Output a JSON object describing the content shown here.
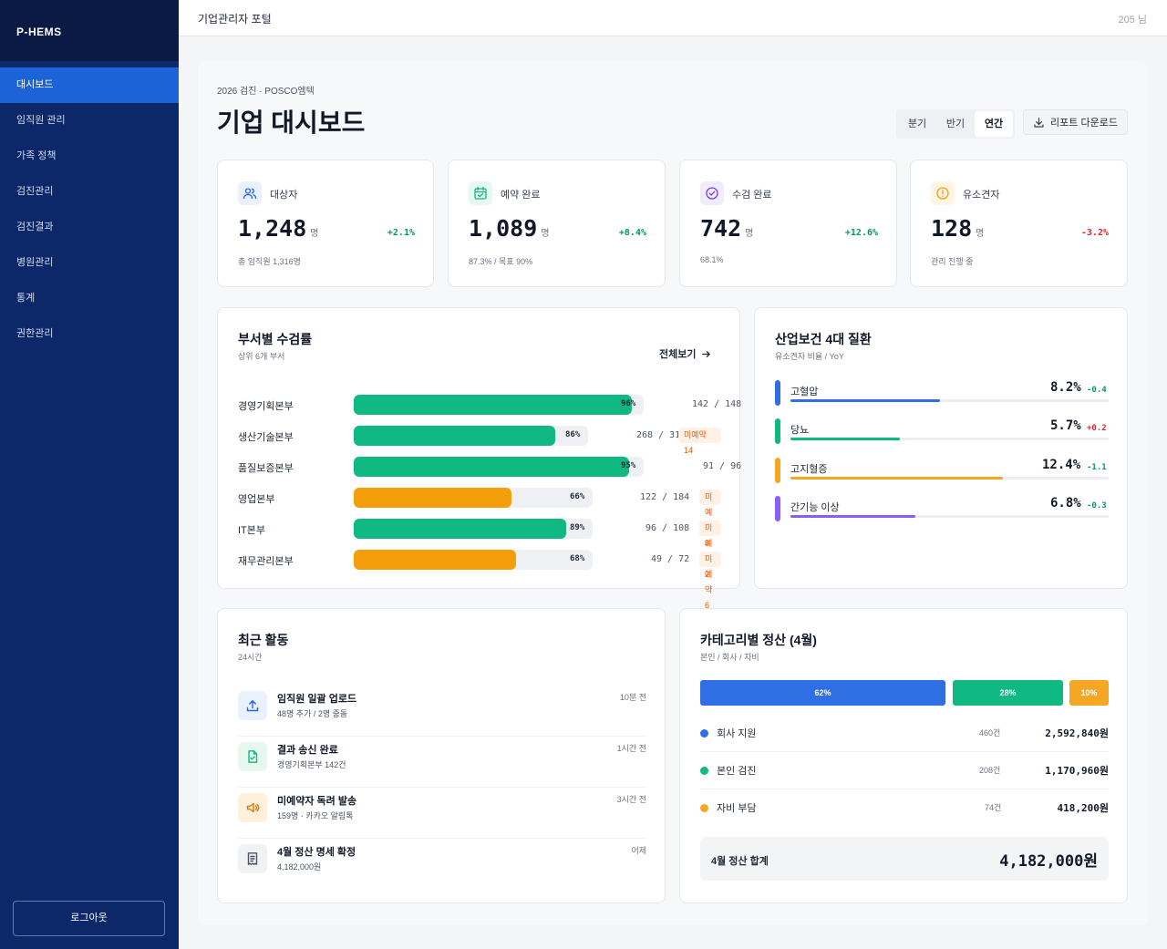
{
  "sidebar": {
    "brand": "P-HEMS",
    "items": [
      {
        "label": "대시보드"
      },
      {
        "label": "임직원 관리"
      },
      {
        "label": "가족 정책"
      },
      {
        "label": "검진관리"
      },
      {
        "label": "검진결과"
      },
      {
        "label": "병원관리"
      },
      {
        "label": "통계"
      },
      {
        "label": "권한관리"
      }
    ],
    "logout": "로그아웃"
  },
  "topbar": {
    "title": "기업관리자 포털",
    "user": "205 님"
  },
  "header": {
    "breadcrumb": "2026 검진 · POSCO엠텍",
    "title": "기업 대시보드",
    "periods": [
      "분기",
      "반기",
      "연간"
    ],
    "active_period": "연간",
    "download": "리포트 다운로드"
  },
  "kpis": [
    {
      "label": "대상자",
      "value": "1,248",
      "unit": "명",
      "change": "+2.1%",
      "sub": "총 임직원 1,316명",
      "icon": "users-icon",
      "color": "#2563eb",
      "bg": "#eaf1fd",
      "change_color": "#059669"
    },
    {
      "label": "예약 완료",
      "value": "1,089",
      "unit": "명",
      "change": "+8.4%",
      "sub": "87.3% / 목표 90%",
      "icon": "calendar-check-icon",
      "color": "#10b981",
      "bg": "#e7f8f1",
      "change_color": "#059669"
    },
    {
      "label": "수검 완료",
      "value": "742",
      "unit": "명",
      "change": "+12.6%",
      "sub": "68.1%",
      "icon": "check-circle-icon",
      "color": "#7c3aed",
      "bg": "#f1ecfd",
      "change_color": "#059669"
    },
    {
      "label": "유소견자",
      "value": "128",
      "unit": "명",
      "change": "-3.2%",
      "sub": "관리 진행 중",
      "icon": "alert-circle-icon",
      "color": "#f59e0b",
      "bg": "#fef5e4",
      "change_color": "#dc2626"
    }
  ],
  "dept": {
    "title": "부서별 수검률",
    "subtitle": "상위 6개 부서",
    "view_all": "전체보기",
    "rows": [
      {
        "name": "경영기획본부",
        "pct": 96,
        "pct_label": "96%",
        "count": "142 / 148",
        "badge": "",
        "color": "#10b981"
      },
      {
        "name": "생산기술본부",
        "pct": 86,
        "pct_label": "86%",
        "count": "268 / 312",
        "badge": "미예약 14",
        "color": "#10b981"
      },
      {
        "name": "품질보증본부",
        "pct": 95,
        "pct_label": "95%",
        "count": "91 / 96",
        "badge": "",
        "color": "#10b981"
      },
      {
        "name": "영업본부",
        "pct": 66,
        "pct_label": "66%",
        "count": "122 / 184",
        "badge": "미예약 8",
        "color": "#f59e0b"
      },
      {
        "name": "IT본부",
        "pct": 89,
        "pct_label": "89%",
        "count": "96 / 108",
        "badge": "미예약 2",
        "color": "#10b981"
      },
      {
        "name": "재무관리본부",
        "pct": 68,
        "pct_label": "68%",
        "count": "49 / 72",
        "badge": "미예약 6",
        "color": "#f59e0b"
      }
    ]
  },
  "disease": {
    "title": "산업보건 4대 질환",
    "subtitle": "유소견자 비율 / YoY",
    "rows": [
      {
        "name": "고혈압",
        "value": "8.2%",
        "change": "-0.4",
        "level": 0.47,
        "color": "#2f6fe4",
        "change_color": "#059669"
      },
      {
        "name": "당뇨",
        "value": "5.7%",
        "change": "+0.2",
        "level": 0.34,
        "color": "#10b981",
        "change_color": "#dc2626"
      },
      {
        "name": "고지혈증",
        "value": "12.4%",
        "change": "-1.1",
        "level": 0.67,
        "color": "#f5a623",
        "change_color": "#059669"
      },
      {
        "name": "간기능 이상",
        "value": "6.8%",
        "change": "-0.3",
        "level": 0.39,
        "color": "#8b5cf6",
        "change_color": "#059669"
      }
    ]
  },
  "activity": {
    "title": "최근 활동",
    "subtitle": "24시간",
    "items": [
      {
        "title": "임직원 일괄 업로드",
        "desc": "48명 추가 / 2명 중돌",
        "time": "10분 전",
        "icon": "upload-icon",
        "color": "#2563eb",
        "bg": "#eaf1fd"
      },
      {
        "title": "결과 송신 완료",
        "desc": "경영기획본부 142건",
        "time": "1시간 전",
        "icon": "document-check-icon",
        "color": "#10b981",
        "bg": "#e7f8f1"
      },
      {
        "title": "미예약자 독려 발송",
        "desc": "159명 · 카카오 알림톡",
        "time": "3시간 전",
        "icon": "megaphone-icon",
        "color": "#d97706",
        "bg": "#fdf1dc"
      },
      {
        "title": "4월 정산 명세 확정",
        "desc": "4,182,000원",
        "time": "어제",
        "icon": "receipt-icon",
        "color": "#4b5563",
        "bg": "#f1f2f4"
      }
    ]
  },
  "settlement": {
    "title": "카테고리별 정산 (4월)",
    "subtitle": "본인 / 회사 / 자비",
    "segments": [
      {
        "label": "62%",
        "share": 62,
        "color": "#2f6fe4"
      },
      {
        "label": "28%",
        "share": 28,
        "color": "#10b981"
      },
      {
        "label": "10%",
        "share": 10,
        "color": "#f5a623"
      }
    ],
    "legend": [
      {
        "name": "회사 지원",
        "count": "460건",
        "amount": "2,592,840원",
        "color": "#2f6fe4"
      },
      {
        "name": "본인 검진",
        "count": "208건",
        "amount": "1,170,960원",
        "color": "#10b981"
      },
      {
        "name": "자비 부담",
        "count": "74건",
        "amount": "418,200원",
        "color": "#f5a623"
      }
    ],
    "total_label": "4월 정산 합계",
    "total_amount": "4,182,000원"
  }
}
